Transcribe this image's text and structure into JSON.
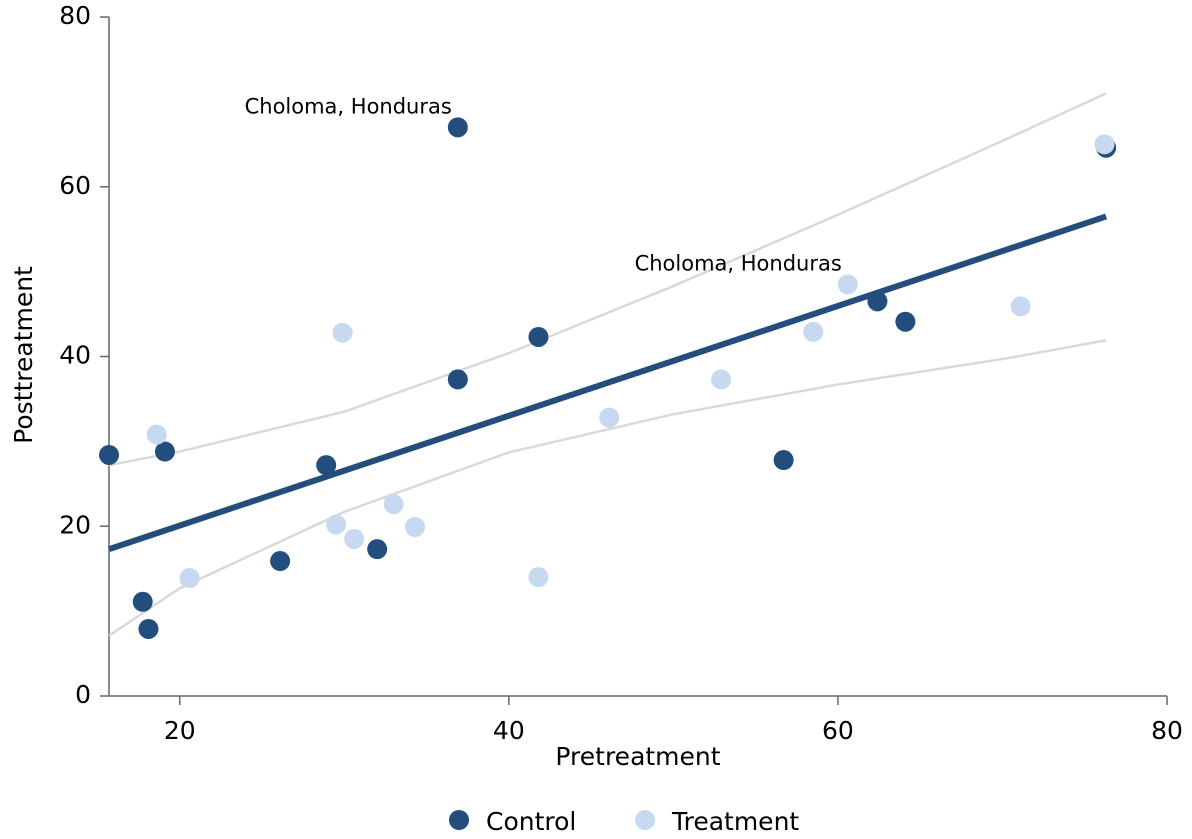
{
  "chart_data": {
    "type": "scatter",
    "x_label": "Pretreatment",
    "y_label": "Posttreatment",
    "xlim": [
      15.7,
      80
    ],
    "ylim": [
      0,
      80
    ],
    "xticks": [
      20,
      40,
      60,
      80
    ],
    "yticks": [
      0,
      20,
      40,
      60,
      80
    ],
    "series": [
      {
        "name": "Control",
        "color": "#234d7d",
        "x": [
          15.7,
          17.75,
          18.1,
          19.1,
          26.1,
          28.9,
          32.0,
          36.9,
          36.9,
          41.8,
          56.7,
          62.4,
          64.1,
          76.3
        ],
        "values": [
          28.4,
          11.1,
          7.9,
          28.8,
          15.9,
          27.2,
          17.3,
          37.3,
          67.0,
          42.3,
          27.8,
          46.5,
          44.1,
          64.6
        ]
      },
      {
        "name": "Treatment",
        "color": "#c6d9f0",
        "x": [
          18.6,
          20.6,
          29.5,
          29.9,
          30.6,
          33.0,
          34.3,
          41.8,
          46.1,
          52.9,
          58.5,
          60.6,
          71.1,
          76.2
        ],
        "values": [
          30.8,
          13.9,
          20.2,
          42.8,
          18.5,
          22.6,
          19.9,
          14.0,
          32.8,
          37.3,
          42.9,
          48.5,
          45.9,
          65.0
        ]
      }
    ],
    "fit": {
      "color": "#234d7d",
      "x": [
        15.7,
        76.3
      ],
      "values": [
        17.3,
        56.5
      ]
    },
    "ci_upper": {
      "color": "#d9d9d9",
      "x": [
        15.7,
        20,
        30,
        40,
        50,
        60,
        70,
        76.3
      ],
      "values": [
        27.2,
        28.8,
        33.5,
        40.4,
        48.3,
        56.7,
        65.4,
        71.0
      ]
    },
    "ci_lower": {
      "color": "#d9d9d9",
      "x": [
        15.7,
        20,
        30,
        40,
        50,
        60,
        70,
        76.3
      ],
      "values": [
        7.1,
        12.7,
        21.7,
        28.7,
        33.2,
        36.7,
        39.7,
        41.9
      ]
    },
    "annotations": [
      {
        "text": "Choloma, Honduras",
        "x": 36.9,
        "y": 67.0
      },
      {
        "text": "Choloma, Honduras",
        "x": 60.6,
        "y": 48.5
      }
    ]
  }
}
